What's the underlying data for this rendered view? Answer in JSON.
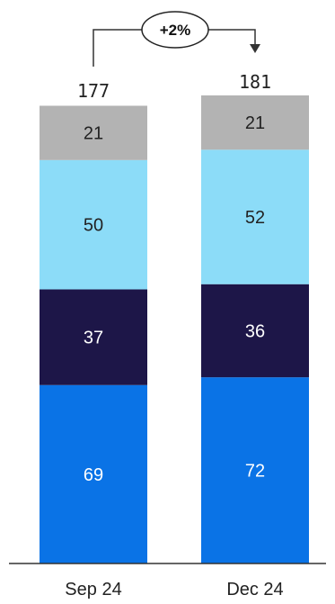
{
  "chart_data": {
    "type": "bar",
    "stacked": true,
    "categories": [
      "Sep 24",
      "Dec 24"
    ],
    "series": [
      {
        "values": [
          69,
          72
        ],
        "color": "#0a73e6",
        "label_color": "#ffffff"
      },
      {
        "values": [
          37,
          36
        ],
        "color": "#1d1648",
        "label_color": "#ffffff"
      },
      {
        "values": [
          50,
          52
        ],
        "color": "#8cdcf8",
        "label_color": "#222222"
      },
      {
        "values": [
          21,
          21
        ],
        "color": "#b3b3b3",
        "label_color": "#222222"
      }
    ],
    "totals": [
      "177",
      "181"
    ],
    "series_value_labels": [
      [
        "69",
        "72"
      ],
      [
        "37",
        "36"
      ],
      [
        "50",
        "52"
      ],
      [
        "21",
        "21"
      ]
    ],
    "change_label": "+2%",
    "ylim": [
      0,
      181
    ]
  }
}
